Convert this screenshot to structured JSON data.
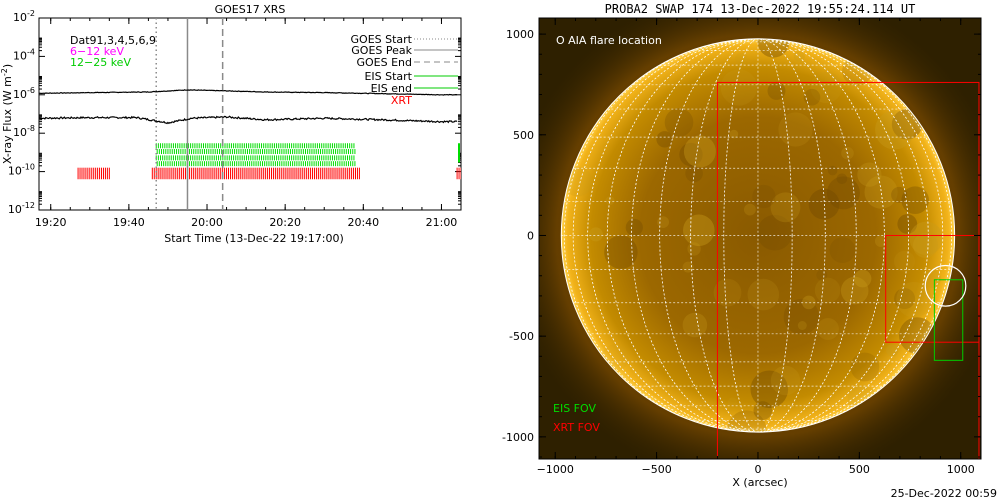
{
  "left_panel": {
    "title": "GOES17 XRS",
    "ylabel": "X-ray Flux (W m",
    "ylabel_sup": "-2",
    "ylabel_close": ")",
    "xlabel": "Start Time (13-Dec-22 19:17:00)",
    "label_dat": "Dat91,3,4,5,6,9",
    "label_low_energy": "6−12 keV",
    "label_high_energy": "12−25 keV",
    "legend": {
      "goes_start": "GOES Start",
      "goes_peak": "GOES Peak",
      "goes_end": "GOES End",
      "eis_start": "EIS Start",
      "eis_end": "EIS end",
      "xrt": "XRT"
    },
    "colors": {
      "low_energy": "#ff00ff",
      "high_energy": "#00cc00",
      "xrt": "#ff0000",
      "eis": "#00dd00"
    }
  },
  "right_panel": {
    "title": "PROBA2 SWAP 174 13-Dec-2022 19:55:24.114 UT",
    "xlabel": "X (arcsec)",
    "aia_label": "O AIA flare location",
    "eis_fov_label": "EIS FOV",
    "xrt_fov_label": "XRT FOV",
    "timestamp": "25-Dec-2022 00:59",
    "colors": {
      "eis_fov": "#00cc00",
      "xrt_fov": "#ff0000",
      "sun_core": "#b07800",
      "sun_limb": "#ffcc33"
    }
  },
  "chart_data": [
    {
      "type": "line",
      "title": "GOES17 XRS",
      "xlabel": "Start Time (13-Dec-22 19:17:00)",
      "ylabel": "X-ray Flux (W m-2)",
      "y_scale": "log",
      "ylim": [
        1e-12,
        0.01
      ],
      "xlim_minutes": [
        1157,
        1265
      ],
      "x_ticks": [
        "19:20",
        "19:40",
        "20:00",
        "20:20",
        "20:40",
        "21:00"
      ],
      "y_ticks": [
        "10-12",
        "10-10",
        "10-8",
        "10-6",
        "10-4",
        "10-2"
      ],
      "series": [
        {
          "name": "6−12 keV",
          "x": [
            "19:17",
            "19:30",
            "19:45",
            "19:55",
            "20:05",
            "20:15",
            "20:30",
            "20:45",
            "21:00",
            "21:04"
          ],
          "y": [
            1.2e-06,
            1.3e-06,
            1.4e-06,
            1.8e-06,
            1.6e-06,
            1.4e-06,
            1.3e-06,
            1.15e-06,
            1e-06,
            1e-06
          ]
        },
        {
          "name": "12−25 keV",
          "x": [
            "19:17",
            "19:30",
            "19:42",
            "19:50",
            "19:56",
            "20:05",
            "20:15",
            "20:30",
            "20:45",
            "21:00",
            "21:04"
          ],
          "y": [
            6e-08,
            6.5e-08,
            6.5e-08,
            3.5e-08,
            6e-08,
            7e-08,
            5e-08,
            6e-08,
            5e-08,
            4e-08,
            4e-08
          ]
        }
      ],
      "markers": [
        {
          "name": "GOES Start",
          "time": "19:47",
          "style": "dotted"
        },
        {
          "name": "GOES Peak",
          "time": "19:55",
          "style": "solid"
        },
        {
          "name": "GOES End",
          "time": "20:04",
          "style": "dashed"
        }
      ],
      "eis_span": {
        "start": "19:47",
        "end": "20:38"
      },
      "xrt_spans": [
        {
          "start": "19:27",
          "end": "19:35"
        },
        {
          "start": "19:46",
          "end": "20:39"
        },
        {
          "start": "21:04",
          "end": "21:05"
        }
      ]
    },
    {
      "type": "image",
      "title": "PROBA2 SWAP 174 13-Dec-2022 19:55:24.114 UT",
      "xlabel": "X (arcsec)",
      "xlim": [
        -1080,
        1100
      ],
      "ylim": [
        -1110,
        1080
      ],
      "x_ticks": [
        -1000,
        -500,
        0,
        500,
        1000
      ],
      "y_ticks": [
        1000,
        500,
        0,
        -500,
        -1000
      ],
      "sun_radius_arcsec": 970,
      "aia_flare_location": {
        "x": 925,
        "y": -250
      },
      "eis_fov": {
        "x0": 870,
        "x1": 1010,
        "y0": -620,
        "y1": -220
      },
      "xrt_fov_large": {
        "x0": -200,
        "x1": 1090,
        "y0": -1110,
        "y1": 760
      },
      "xrt_fov_small": {
        "x0": 630,
        "x1": 1090,
        "y0": -530,
        "y1": 0
      }
    }
  ]
}
